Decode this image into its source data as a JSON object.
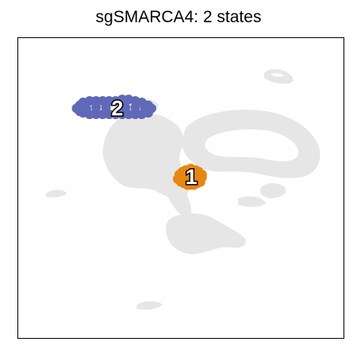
{
  "title": "sgSMARCA4: 2 states",
  "chart_data": {
    "type": "scatter",
    "title": "sgSMARCA4: 2 states",
    "xlabel": "",
    "ylabel": "",
    "xlim": [
      0,
      1
    ],
    "ylim": [
      0,
      1
    ],
    "grid": false,
    "legend": "none",
    "background_color": "#e6e6e6",
    "series": [
      {
        "name": "1",
        "color": "#e8860e",
        "label_position": [
          0.532,
          0.537
        ],
        "points": [
          [
            0.49,
            0.53
          ],
          [
            0.5,
            0.52
          ],
          [
            0.51,
            0.515
          ],
          [
            0.52,
            0.51
          ],
          [
            0.53,
            0.51
          ],
          [
            0.54,
            0.51
          ],
          [
            0.55,
            0.515
          ],
          [
            0.56,
            0.52
          ],
          [
            0.565,
            0.535
          ],
          [
            0.495,
            0.545
          ],
          [
            0.505,
            0.555
          ],
          [
            0.515,
            0.56
          ],
          [
            0.53,
            0.565
          ],
          [
            0.545,
            0.56
          ],
          [
            0.555,
            0.555
          ],
          [
            0.565,
            0.545
          ],
          [
            0.5,
            0.535
          ],
          [
            0.515,
            0.54
          ],
          [
            0.53,
            0.535
          ],
          [
            0.545,
            0.54
          ],
          [
            0.555,
            0.535
          ]
        ]
      },
      {
        "name": "2",
        "color": "#6068b8",
        "label_position": [
          0.305,
          0.765
        ],
        "points": [
          [
            0.18,
            0.765
          ],
          [
            0.19,
            0.755
          ],
          [
            0.2,
            0.75
          ],
          [
            0.22,
            0.745
          ],
          [
            0.24,
            0.745
          ],
          [
            0.26,
            0.745
          ],
          [
            0.28,
            0.745
          ],
          [
            0.3,
            0.745
          ],
          [
            0.32,
            0.745
          ],
          [
            0.34,
            0.745
          ],
          [
            0.36,
            0.745
          ],
          [
            0.38,
            0.745
          ],
          [
            0.4,
            0.75
          ],
          [
            0.41,
            0.765
          ],
          [
            0.19,
            0.775
          ],
          [
            0.2,
            0.785
          ],
          [
            0.22,
            0.79
          ],
          [
            0.24,
            0.79
          ],
          [
            0.26,
            0.79
          ],
          [
            0.28,
            0.79
          ],
          [
            0.3,
            0.79
          ],
          [
            0.32,
            0.795
          ],
          [
            0.34,
            0.795
          ],
          [
            0.36,
            0.79
          ],
          [
            0.38,
            0.785
          ],
          [
            0.4,
            0.775
          ],
          [
            0.21,
            0.765
          ],
          [
            0.24,
            0.768
          ],
          [
            0.27,
            0.768
          ],
          [
            0.33,
            0.768
          ],
          [
            0.36,
            0.768
          ],
          [
            0.39,
            0.765
          ]
        ]
      }
    ]
  }
}
